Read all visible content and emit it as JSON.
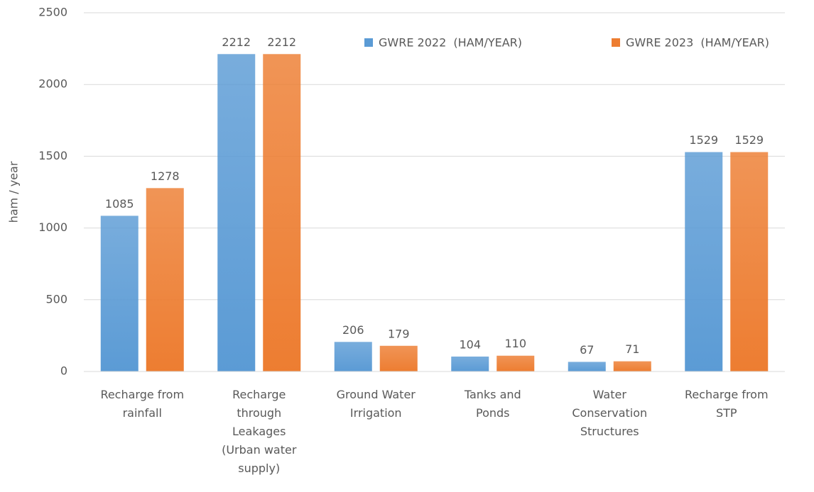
{
  "chart_data": {
    "type": "bar",
    "y_axis_label": "ham / year",
    "categories": [
      "Recharge from rainfall",
      "Recharge through Leakages (Urban water supply)",
      "Ground Water Irrigation",
      "Tanks and Ponds",
      "Water Conservation Structures",
      "Recharge from STP"
    ],
    "series": [
      {
        "name": "GWRE 2022  (HAM/YEAR)",
        "color": "#5b9bd5",
        "values": [
          1085,
          2212,
          206,
          104,
          67,
          1529
        ]
      },
      {
        "name": "GWRE 2023  (HAM/YEAR)",
        "color": "#ed7d31",
        "values": [
          1278,
          2212,
          179,
          110,
          71,
          1529
        ]
      }
    ],
    "ylim": [
      0,
      2500
    ],
    "yticks": [
      0,
      500,
      1000,
      1500,
      2000,
      2500
    ],
    "grid": true,
    "legend": "top-right"
  }
}
